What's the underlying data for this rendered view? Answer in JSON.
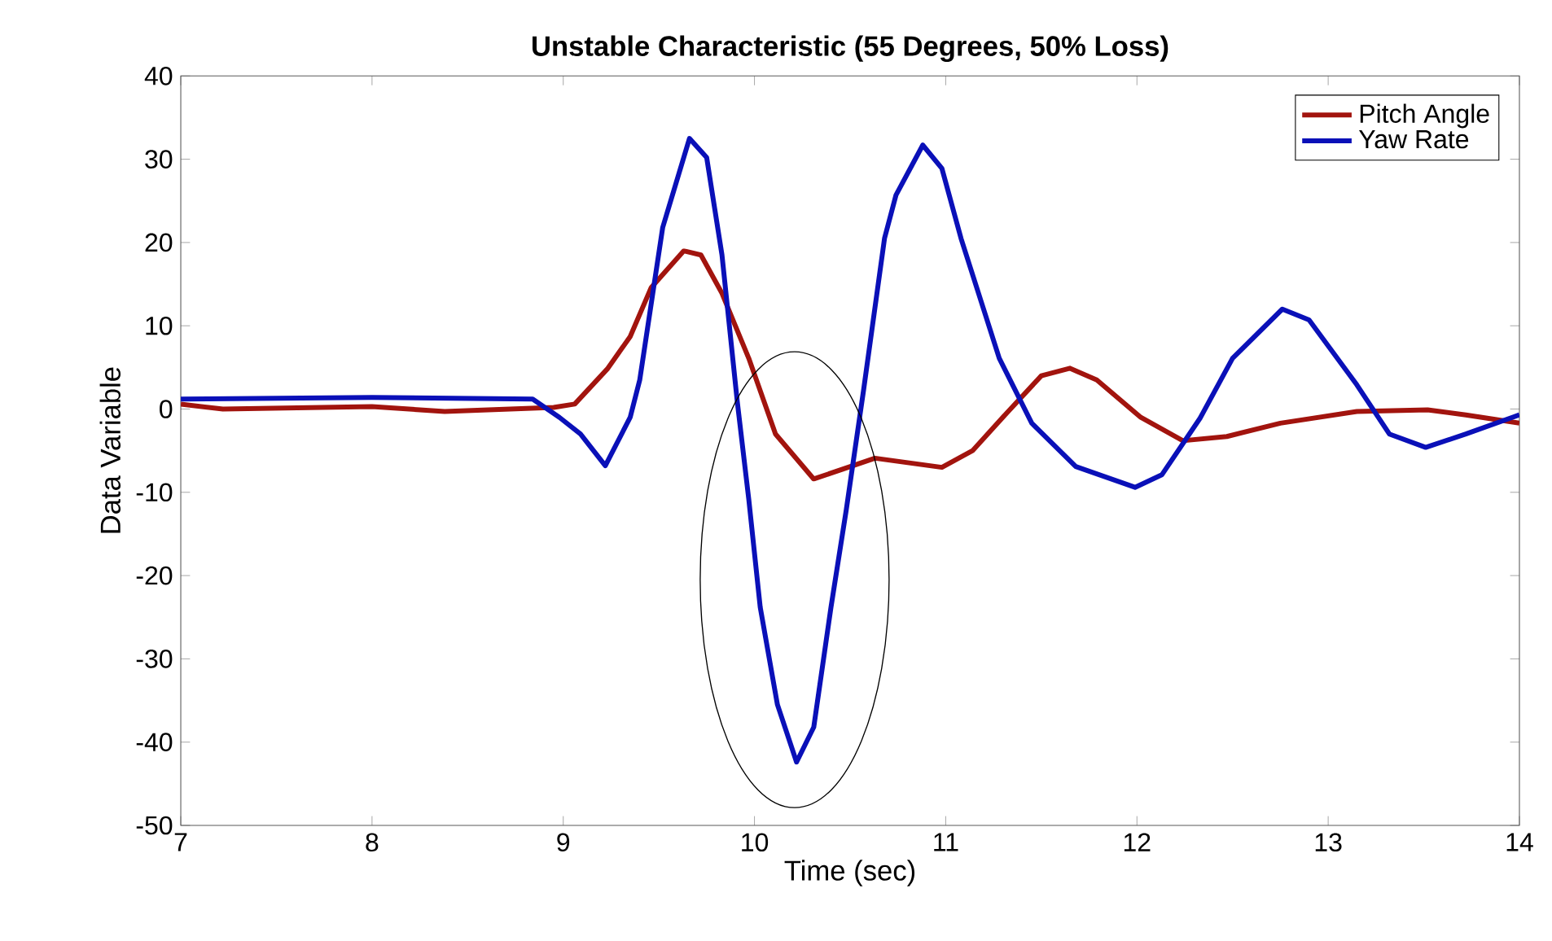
{
  "chart_data": {
    "type": "line",
    "title": "Unstable Characteristic (55 Degrees, 50% Loss)",
    "xlabel": "Time (sec)",
    "ylabel": "Data Variable",
    "xlim": [
      7,
      14
    ],
    "ylim": [
      -50,
      40
    ],
    "xticks": [
      7,
      8,
      9,
      10,
      11,
      12,
      13,
      14
    ],
    "yticks": [
      -50,
      -40,
      -30,
      -20,
      -10,
      0,
      10,
      20,
      30,
      40
    ],
    "grid": false,
    "legend": "top right",
    "marker": "none",
    "line_style": "solid",
    "series": [
      {
        "name": "Pitch Angle",
        "color": "#a2140e",
        "x": [
          7.0,
          7.22,
          8.0,
          8.38,
          8.95,
          9.06,
          9.23,
          9.35,
          9.46,
          9.63,
          9.72,
          9.83,
          9.97,
          10.11,
          10.31,
          10.63,
          10.98,
          11.14,
          11.31,
          11.5,
          11.65,
          11.79,
          12.02,
          12.24,
          12.47,
          12.75,
          13.15,
          13.52,
          13.72,
          14.0
        ],
        "values": [
          0.6,
          0.0,
          0.3,
          -0.3,
          0.2,
          0.6,
          4.8,
          8.7,
          14.6,
          19.0,
          18.5,
          13.9,
          6.1,
          -3.0,
          -8.4,
          -5.9,
          -7.0,
          -5.0,
          -0.7,
          4.0,
          4.9,
          3.5,
          -1.0,
          -3.8,
          -3.3,
          -1.7,
          -0.3,
          -0.1,
          -0.7,
          -1.7
        ]
      },
      {
        "name": "Yaw Rate",
        "color": "#0a10b8",
        "x": [
          7.0,
          8.0,
          8.84,
          8.98,
          9.09,
          9.22,
          9.35,
          9.4,
          9.52,
          9.66,
          9.75,
          9.83,
          9.91,
          9.97,
          10.03,
          10.12,
          10.22,
          10.31,
          10.4,
          10.48,
          10.57,
          10.68,
          10.74,
          10.88,
          10.98,
          11.08,
          11.28,
          11.45,
          11.68,
          11.99,
          12.13,
          12.33,
          12.5,
          12.76,
          12.9,
          13.15,
          13.32,
          13.51,
          13.72,
          14.0
        ],
        "values": [
          1.2,
          1.4,
          1.2,
          -1.0,
          -3.0,
          -6.8,
          -1.0,
          3.5,
          21.8,
          32.5,
          30.2,
          18.5,
          0.9,
          -10.8,
          -23.8,
          -35.5,
          -42.4,
          -38.2,
          -23.8,
          -12.1,
          2.2,
          20.5,
          25.7,
          31.7,
          28.9,
          20.5,
          6.1,
          -1.7,
          -6.9,
          -9.4,
          -7.9,
          -1.1,
          6.1,
          12.0,
          10.7,
          2.9,
          -3.0,
          -4.6,
          -3.0,
          -0.7
        ]
      }
    ]
  }
}
